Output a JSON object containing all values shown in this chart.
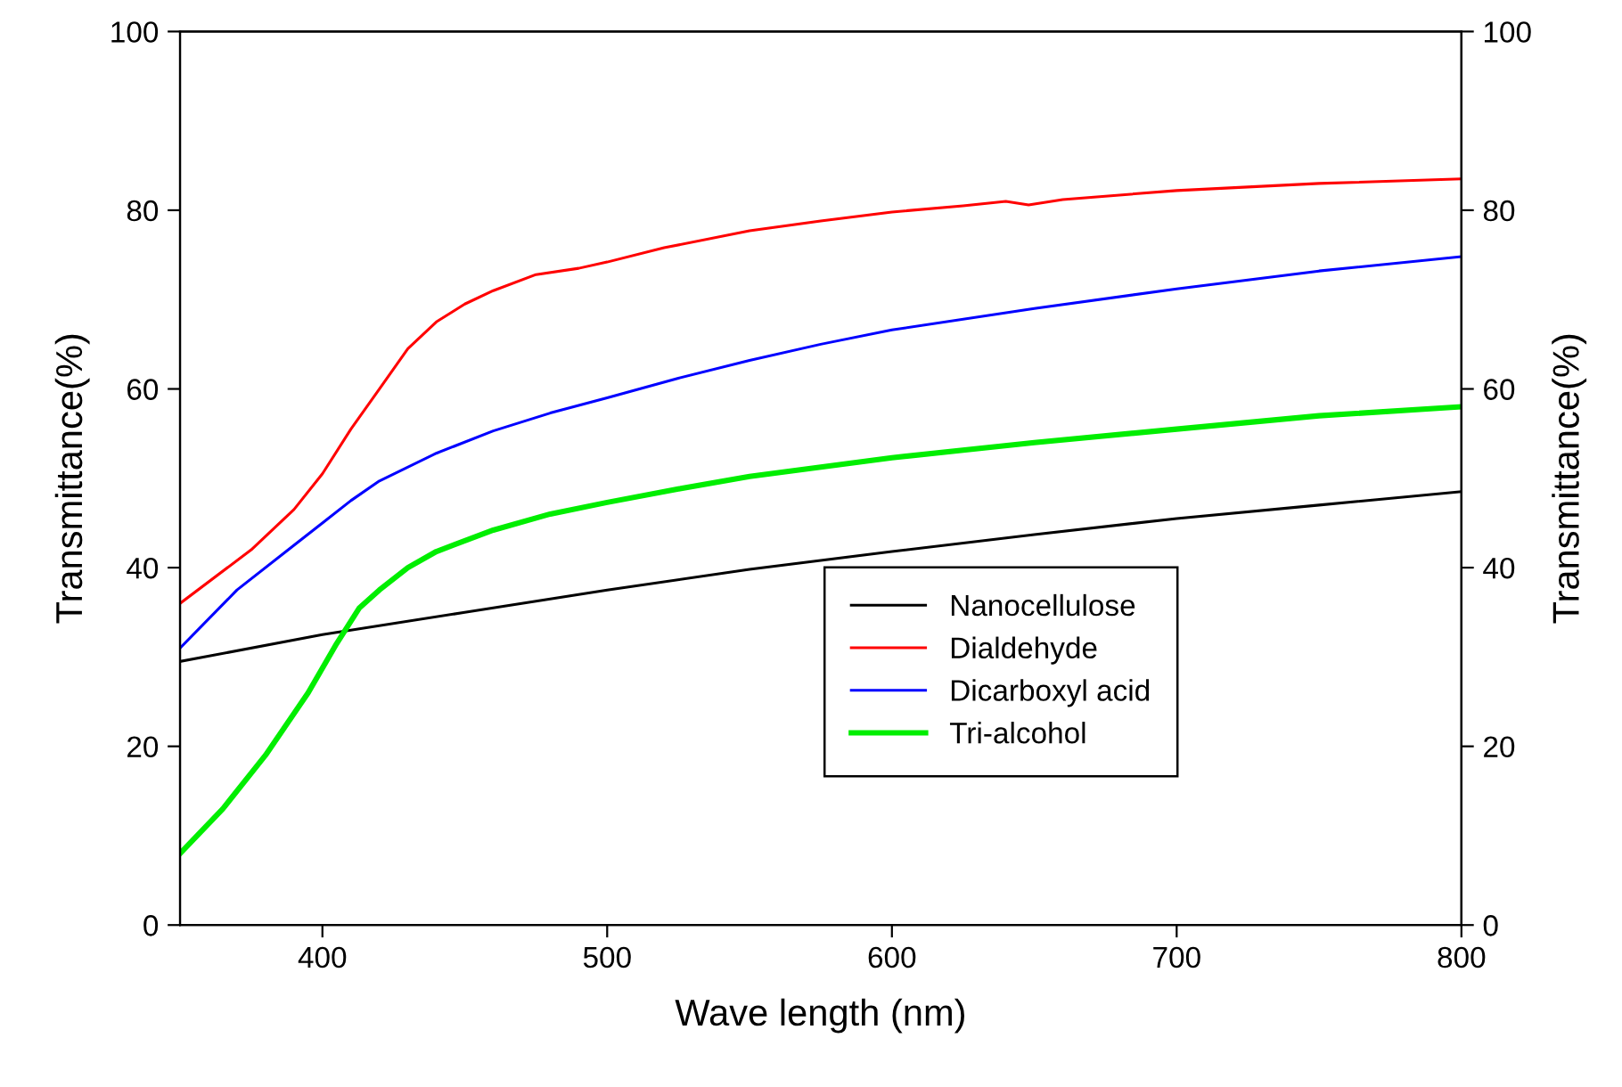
{
  "chart_data": {
    "type": "line",
    "xlabel": "Wave length (nm)",
    "ylabel": "Transmittance(%)",
    "y2label": "Transmittance(%)",
    "xlim": [
      350,
      800
    ],
    "xticks": [
      400,
      500,
      600,
      700,
      800
    ],
    "ylim": [
      0,
      100
    ],
    "yticks": [
      0,
      20,
      40,
      60,
      80,
      100
    ],
    "y2lim": [
      0,
      100
    ],
    "y2ticks": [
      0,
      20,
      40,
      60,
      80,
      100
    ],
    "grid": false,
    "legend": "bottom right",
    "marker": "none",
    "line_style": "solid",
    "series": [
      {
        "name": "Nanocellulose",
        "color": "#000000",
        "x": [
          350,
          400,
          450,
          500,
          550,
          600,
          650,
          700,
          750,
          800
        ],
        "values": [
          29.5,
          32.5,
          35,
          37.5,
          39.8,
          41.8,
          43.7,
          45.5,
          47,
          48.5
        ]
      },
      {
        "name": "Dialdehyde",
        "color": "#ff0000",
        "x": [
          350,
          375,
          390,
          400,
          410,
          420,
          430,
          440,
          450,
          460,
          475,
          490,
          500,
          520,
          550,
          575,
          600,
          625,
          640,
          648,
          660,
          700,
          750,
          800
        ],
        "values": [
          36,
          42,
          46.5,
          50.5,
          55.5,
          60,
          64.5,
          67.5,
          69.5,
          71,
          72.8,
          73.5,
          74.2,
          75.8,
          77.7,
          78.8,
          79.8,
          80.5,
          81,
          80.6,
          81.2,
          82.2,
          83,
          83.5
        ]
      },
      {
        "name": "Dicarboxyl acid",
        "color": "#0000ff",
        "x": [
          350,
          370,
          390,
          400,
          410,
          420,
          440,
          460,
          480,
          500,
          525,
          550,
          575,
          600,
          650,
          700,
          750,
          800
        ],
        "values": [
          31,
          37.5,
          42.5,
          45,
          47.5,
          49.7,
          52.8,
          55.3,
          57.3,
          59,
          61.2,
          63.2,
          65,
          66.6,
          69,
          71.2,
          73.2,
          74.8
        ]
      },
      {
        "name": "Tri-alcohol",
        "color": "#00ee00",
        "x": [
          350,
          365,
          380,
          395,
          405,
          413,
          420,
          430,
          440,
          460,
          480,
          500,
          525,
          550,
          600,
          650,
          700,
          750,
          800
        ],
        "values": [
          8,
          13,
          19,
          26,
          31.5,
          35.5,
          37.5,
          40,
          41.8,
          44.2,
          46,
          47.3,
          48.8,
          50.2,
          52.3,
          54,
          55.5,
          57,
          58
        ]
      }
    ]
  }
}
